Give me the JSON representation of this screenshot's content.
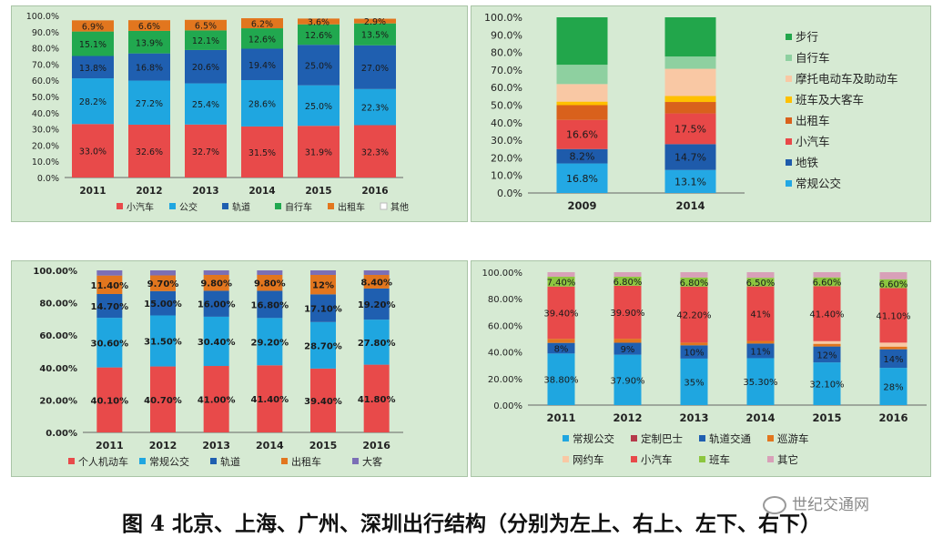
{
  "caption": "图 4  北京、上海、广州、深圳出行结构（分别为左上、右上、左下、右下）",
  "watermark": "世纪交通网",
  "chart_data": [
    {
      "type": "bar",
      "stacked": true,
      "categories": [
        "2011",
        "2012",
        "2013",
        "2014",
        "2015",
        "2016"
      ],
      "ylim": [
        0,
        100
      ],
      "y_ticks": [
        "0.0%",
        "10.0%",
        "20.0%",
        "30.0%",
        "40.0%",
        "50.0%",
        "60.0%",
        "70.0%",
        "80.0%",
        "90.0%",
        "100.0%"
      ],
      "legend_position": "bottom",
      "series": [
        {
          "name": "小汽车",
          "color": "#e84a4a",
          "values": [
            33.0,
            32.6,
            32.7,
            31.5,
            31.9,
            32.3
          ],
          "labels": [
            "33.0%",
            "32.6%",
            "32.7%",
            "31.5%",
            "31.9%",
            "32.3%"
          ]
        },
        {
          "name": "公交",
          "color": "#1fa6e0",
          "values": [
            28.2,
            27.2,
            25.4,
            28.6,
            25.0,
            22.3
          ],
          "labels": [
            "28.2%",
            "27.2%",
            "25.4%",
            "28.6%",
            "25.0%",
            "22.3%"
          ]
        },
        {
          "name": "轨道",
          "color": "#1f5fb0",
          "values": [
            13.8,
            16.8,
            20.6,
            19.4,
            25.0,
            27.0
          ],
          "labels": [
            "13.8%",
            "16.8%",
            "20.6%",
            "19.4%",
            "25.0%",
            "27.0%"
          ]
        },
        {
          "name": "自行车",
          "color": "#21a84f",
          "values": [
            15.1,
            13.9,
            12.1,
            12.6,
            12.6,
            13.5
          ],
          "labels": [
            "15.1%",
            "13.9%",
            "12.1%",
            "12.6%",
            "12.6%",
            "13.5%"
          ]
        },
        {
          "name": "出租车",
          "color": "#e2761e",
          "values": [
            6.9,
            6.6,
            6.5,
            6.2,
            3.6,
            2.9
          ],
          "labels": [
            "6.9%",
            "6.6%",
            "6.5%",
            "6.2%",
            "3.6%",
            "2.9%"
          ]
        },
        {
          "name": "其他",
          "color": "#ffffff",
          "values": [
            0,
            0,
            0,
            0,
            0,
            0
          ],
          "labels": []
        }
      ]
    },
    {
      "type": "bar",
      "stacked": true,
      "categories": [
        "2009",
        "2014"
      ],
      "ylim": [
        0,
        100
      ],
      "y_ticks": [
        "0.0%",
        "10.0%",
        "20.0%",
        "30.0%",
        "40.0%",
        "50.0%",
        "60.0%",
        "70.0%",
        "80.0%",
        "90.0%",
        "100.0%"
      ],
      "legend_position": "right",
      "series": [
        {
          "name": "常规公交",
          "color": "#23a8e4",
          "values": [
            16.8,
            13.1
          ],
          "labels": [
            "16.8%",
            "13.1%"
          ]
        },
        {
          "name": "地铁",
          "color": "#1e5bab",
          "values": [
            8.2,
            14.7
          ],
          "labels": [
            "8.2%",
            "14.7%"
          ]
        },
        {
          "name": "小汽车",
          "color": "#e84848",
          "values": [
            16.6,
            17.5
          ],
          "labels": [
            "16.6%",
            "17.5%"
          ]
        },
        {
          "name": "出租车",
          "color": "#d9611c",
          "values": [
            8.4,
            6.5
          ],
          "labels": []
        },
        {
          "name": "班车及大客车",
          "color": "#ffc000",
          "values": [
            2.0,
            3.4
          ],
          "labels": []
        },
        {
          "name": "摩托电动车及助动车",
          "color": "#f9c8a4",
          "values": [
            10.0,
            15.5
          ],
          "labels": []
        },
        {
          "name": "自行车",
          "color": "#8ed0a0",
          "values": [
            11.0,
            7.0
          ],
          "labels": []
        },
        {
          "name": "步行",
          "color": "#22a64b",
          "values": [
            27.0,
            22.3
          ],
          "labels": []
        }
      ]
    },
    {
      "type": "bar",
      "stacked": true,
      "categories": [
        "2011",
        "2012",
        "2013",
        "2014",
        "2015",
        "2016"
      ],
      "ylim": [
        0,
        100
      ],
      "y_ticks": [
        "0.00%",
        "20.00%",
        "40.00%",
        "60.00%",
        "80.00%",
        "100.00%"
      ],
      "legend_position": "bottom",
      "series": [
        {
          "name": "个人机动车",
          "color": "#e84a4a",
          "values": [
            40.1,
            40.7,
            41.0,
            41.4,
            39.4,
            41.8
          ],
          "labels": [
            "40.10%",
            "40.70%",
            "41.00%",
            "41.40%",
            "39.40%",
            "41.80%"
          ]
        },
        {
          "name": "常规公交",
          "color": "#1fa6e0",
          "values": [
            30.6,
            31.5,
            30.4,
            29.2,
            28.7,
            27.8
          ],
          "labels": [
            "30.60%",
            "31.50%",
            "30.40%",
            "29.20%",
            "28.70%",
            "27.80%"
          ]
        },
        {
          "name": "轨道",
          "color": "#1f5fb0",
          "values": [
            14.7,
            15.0,
            16.0,
            16.8,
            17.1,
            19.2
          ],
          "labels": [
            "14.70%",
            "15.00%",
            "16.00%",
            "16.80%",
            "17.10%",
            "19.20%"
          ]
        },
        {
          "name": "出租车",
          "color": "#e2761e",
          "values": [
            11.4,
            9.7,
            9.8,
            9.8,
            12.0,
            8.4
          ],
          "labels": [
            "11.40%",
            "9.70%",
            "9.80%",
            "9.80%",
            "12%",
            "8.40%"
          ]
        },
        {
          "name": "大客",
          "color": "#7b6fb6",
          "values": [
            3.2,
            3.1,
            2.8,
            2.8,
            2.8,
            2.8
          ],
          "labels": []
        }
      ]
    },
    {
      "type": "bar",
      "stacked": true,
      "categories": [
        "2011",
        "2012",
        "2013",
        "2014",
        "2015",
        "2016"
      ],
      "ylim": [
        0,
        100
      ],
      "y_ticks": [
        "0.00%",
        "20.00%",
        "40.00%",
        "60.00%",
        "80.00%",
        "100.00%"
      ],
      "legend_position": "bottom",
      "series": [
        {
          "name": "常规公交",
          "color": "#1fa6e0",
          "values": [
            38.8,
            37.9,
            35.0,
            35.3,
            32.1,
            28.0
          ],
          "labels": [
            "38.80%",
            "37.90%",
            "35%",
            "35.30%",
            "32.10%",
            "28%"
          ]
        },
        {
          "name": "定制巴士",
          "color": "#b53a4a",
          "values": [
            0,
            0,
            0,
            0,
            0,
            0
          ],
          "labels": []
        },
        {
          "name": "轨道交通",
          "color": "#1f5fb0",
          "values": [
            8.0,
            9.0,
            10.0,
            11.0,
            12.0,
            14.0
          ],
          "labels": [
            "8%",
            "9%",
            "10%",
            "11%",
            "12%",
            "14%"
          ]
        },
        {
          "name": "巡游车",
          "color": "#e2761e",
          "values": [
            3.0,
            3.0,
            2.0,
            2.0,
            2.0,
            2.0
          ],
          "labels": []
        },
        {
          "name": "网约车",
          "color": "#f9c8a4",
          "values": [
            0,
            0,
            0,
            0,
            2.0,
            3.0
          ],
          "labels": []
        },
        {
          "name": "小汽车",
          "color": "#e84a4a",
          "values": [
            39.4,
            39.9,
            42.2,
            41.0,
            41.4,
            41.1
          ],
          "labels": [
            "39.40%",
            "39.90%",
            "42.20%",
            "41%",
            "41.40%",
            "41.10%"
          ]
        },
        {
          "name": "班车",
          "color": "#8cc63f",
          "values": [
            7.4,
            6.8,
            6.8,
            6.5,
            6.6,
            6.6
          ],
          "labels": [
            "7.40%",
            "6.80%",
            "6.80%",
            "6.50%",
            "6.60%",
            "6.60%"
          ]
        },
        {
          "name": "其它",
          "color": "#d8a0b8",
          "values": [
            3.4,
            3.4,
            4.0,
            4.2,
            3.9,
            5.3
          ],
          "labels": []
        }
      ]
    }
  ]
}
